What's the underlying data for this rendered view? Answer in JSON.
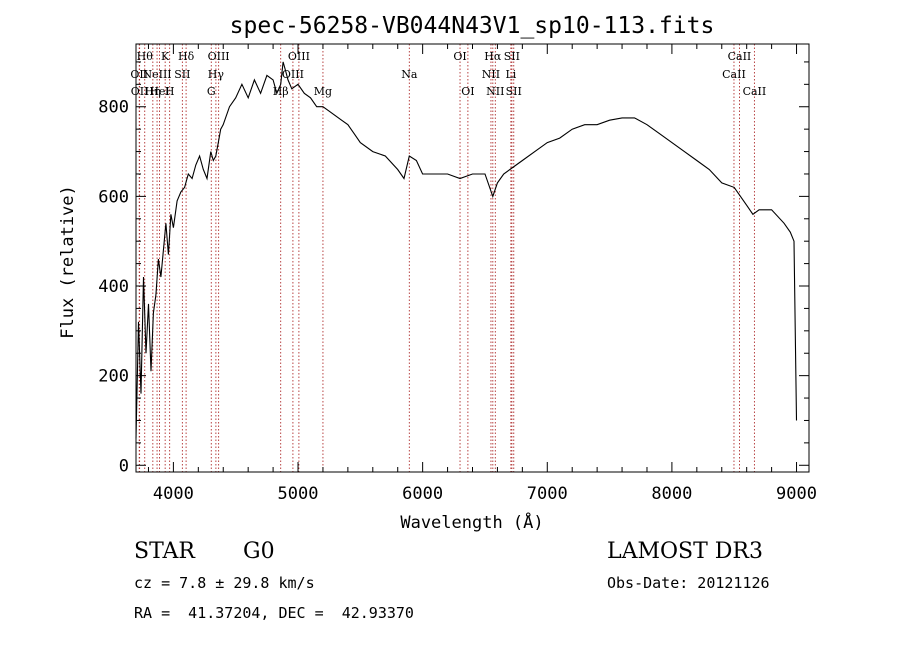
{
  "chart_data": {
    "type": "line",
    "title": "spec-56258-VB044N43V1_sp10-113.fits",
    "xlabel": "Wavelength (Å)",
    "ylabel": "Flux (relative)",
    "xlim": [
      3700,
      9100
    ],
    "ylim": [
      -15,
      940
    ],
    "xticks": [
      4000,
      5000,
      6000,
      7000,
      8000,
      9000
    ],
    "yticks": [
      0,
      200,
      400,
      600,
      800
    ],
    "grid": false,
    "series": [
      {
        "color": "#000000",
        "x": [
          3700,
          3720,
          3740,
          3760,
          3780,
          3800,
          3820,
          3840,
          3860,
          3880,
          3900,
          3920,
          3940,
          3960,
          3980,
          4000,
          4030,
          4060,
          4090,
          4120,
          4150,
          4180,
          4210,
          4240,
          4270,
          4300,
          4320,
          4340,
          4360,
          4380,
          4400,
          4450,
          4500,
          4550,
          4600,
          4650,
          4700,
          4750,
          4800,
          4830,
          4861,
          4880,
          4900,
          4920,
          4950,
          5000,
          5050,
          5100,
          5150,
          5200,
          5250,
          5300,
          5350,
          5400,
          5450,
          5500,
          5600,
          5700,
          5800,
          5850,
          5893,
          5950,
          6000,
          6100,
          6200,
          6300,
          6400,
          6500,
          6563,
          6600,
          6650,
          6700,
          6800,
          6900,
          7000,
          7100,
          7200,
          7300,
          7400,
          7500,
          7600,
          7700,
          7800,
          7900,
          8000,
          8100,
          8200,
          8300,
          8400,
          8500,
          8550,
          8600,
          8650,
          8700,
          8800,
          8900,
          8950,
          8980,
          9000
        ],
        "y": [
          60,
          320,
          160,
          420,
          250,
          360,
          210,
          340,
          380,
          460,
          420,
          480,
          540,
          470,
          560,
          530,
          590,
          610,
          620,
          650,
          640,
          670,
          690,
          660,
          640,
          700,
          680,
          690,
          720,
          750,
          760,
          800,
          820,
          850,
          820,
          860,
          830,
          870,
          860,
          830,
          850,
          900,
          880,
          860,
          840,
          850,
          830,
          820,
          800,
          800,
          790,
          780,
          770,
          760,
          740,
          720,
          700,
          690,
          660,
          640,
          690,
          680,
          650,
          650,
          650,
          640,
          650,
          650,
          600,
          630,
          650,
          660,
          680,
          700,
          720,
          730,
          750,
          760,
          760,
          770,
          775,
          775,
          760,
          740,
          720,
          700,
          680,
          660,
          630,
          620,
          600,
          580,
          560,
          570,
          570,
          540,
          520,
          500,
          100
        ]
      }
    ],
    "lines": [
      {
        "x": 3726,
        "label": "OII",
        "row": 1
      },
      {
        "x": 3729,
        "label": "OII",
        "row": 2
      },
      {
        "x": 3770,
        "label": "Hθ",
        "row": 0
      },
      {
        "x": 3835,
        "label": "Hη",
        "row": 2
      },
      {
        "x": 3869,
        "label": "NeIII",
        "row": 1
      },
      {
        "x": 3889,
        "label": "HeI",
        "row": 2
      },
      {
        "x": 3934,
        "label": "K",
        "row": 0
      },
      {
        "x": 3970,
        "label": "H",
        "row": 2
      },
      {
        "x": 4072,
        "label": "SII",
        "row": 1
      },
      {
        "x": 4102,
        "label": "Hδ",
        "row": 0
      },
      {
        "x": 4304,
        "label": "G",
        "row": 2
      },
      {
        "x": 4341,
        "label": "Hγ",
        "row": 1
      },
      {
        "x": 4363,
        "label": "OIII",
        "row": 0
      },
      {
        "x": 4861,
        "label": "Hβ",
        "row": 2
      },
      {
        "x": 4959,
        "label": "OIII",
        "row": 1
      },
      {
        "x": 5007,
        "label": "OIII",
        "row": 0
      },
      {
        "x": 5200,
        "label": "Mg",
        "row": 2
      },
      {
        "x": 5893,
        "label": "Na",
        "row": 1
      },
      {
        "x": 6300,
        "label": "OI",
        "row": 0
      },
      {
        "x": 6363,
        "label": "OI",
        "row": 2
      },
      {
        "x": 6548,
        "label": "NII",
        "row": 1
      },
      {
        "x": 6563,
        "label": "Hα",
        "row": 0
      },
      {
        "x": 6583,
        "label": "NII",
        "row": 2
      },
      {
        "x": 6708,
        "label": "Li",
        "row": 1
      },
      {
        "x": 6716,
        "label": "SII",
        "row": 0
      },
      {
        "x": 6731,
        "label": "SII",
        "row": 2
      },
      {
        "x": 8498,
        "label": "CaII",
        "row": 1
      },
      {
        "x": 8542,
        "label": "CaII",
        "row": 0
      },
      {
        "x": 8662,
        "label": "CaII",
        "row": 2
      }
    ]
  },
  "info": {
    "class_label": "STAR",
    "subclass": "G0",
    "survey": "LAMOST DR3",
    "redshift_line": "cz = 7.8 ± 29.8 km/s",
    "obs_date_line": "Obs-Date: 20121126",
    "coords_line": "RA =  41.37204, DEC =  42.93370"
  }
}
